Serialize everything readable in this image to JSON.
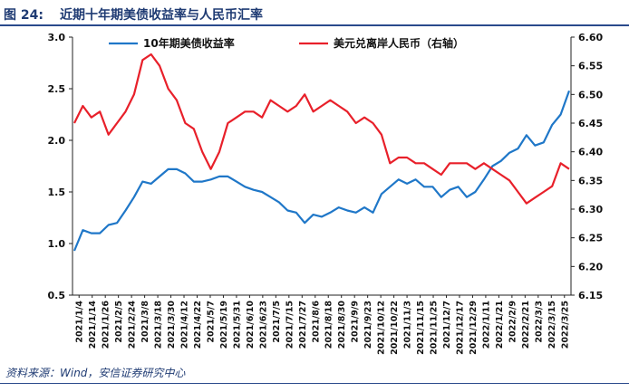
{
  "figure": {
    "label": "图 24:",
    "title": "近期十年期美债收益率与人民币汇率",
    "source": "资料来源：Wind，安信证券研究中心"
  },
  "colors": {
    "bond": "#1f77c8",
    "fx": "#e8202a",
    "axis": "#222222"
  },
  "chart_data": {
    "type": "line",
    "legend_placement": "top",
    "grid": false,
    "y_left": {
      "ylim": [
        0.5,
        3.0
      ],
      "ticks": [
        "0.5",
        "1.0",
        "1.5",
        "2.0",
        "2.5",
        "3.0"
      ]
    },
    "y_right": {
      "ylim": [
        6.15,
        6.6
      ],
      "ticks": [
        "6.15",
        "6.20",
        "6.25",
        "6.30",
        "6.35",
        "6.40",
        "6.45",
        "6.50",
        "6.55",
        "6.60"
      ]
    },
    "x_tick_labels": [
      "2021/1/4",
      "2021/1/14",
      "2021/1/26",
      "2021/2/5",
      "2021/2/24",
      "2021/3/8",
      "2021/3/18",
      "2021/3/30",
      "2021/4/12",
      "2021/4/22",
      "2021/5/7",
      "2021/5/19",
      "2021/5/31",
      "2021/6/10",
      "2021/6/23",
      "2021/7/5",
      "2021/7/15",
      "2021/7/27",
      "2021/8/6",
      "2021/8/18",
      "2021/8/30",
      "2021/9/9",
      "2021/9/23",
      "2021/10/12",
      "2021/10/22",
      "2021/11/3",
      "2021/11/15",
      "2021/11/25",
      "2021/12/7",
      "2021/12/17",
      "2021/12/29",
      "2022/1/11",
      "2022/1/21",
      "2022/2/9",
      "2022/2/21",
      "2022/3/3",
      "2022/3/15",
      "2022/3/25"
    ],
    "series": [
      {
        "name": "10年期美债收益率",
        "axis": "left",
        "values": [
          0.93,
          1.13,
          1.1,
          1.1,
          1.18,
          1.2,
          1.32,
          1.45,
          1.6,
          1.58,
          1.65,
          1.72,
          1.72,
          1.68,
          1.6,
          1.6,
          1.62,
          1.65,
          1.65,
          1.6,
          1.55,
          1.52,
          1.5,
          1.45,
          1.4,
          1.32,
          1.3,
          1.2,
          1.28,
          1.26,
          1.3,
          1.35,
          1.32,
          1.3,
          1.35,
          1.3,
          1.48,
          1.55,
          1.62,
          1.58,
          1.62,
          1.55,
          1.55,
          1.45,
          1.52,
          1.55,
          1.45,
          1.5,
          1.62,
          1.75,
          1.8,
          1.88,
          1.92,
          2.05,
          1.95,
          1.98,
          2.15,
          2.25,
          2.48
        ]
      },
      {
        "name": "美元兑离岸人民币（右轴）",
        "axis": "right",
        "values": [
          6.45,
          6.48,
          6.46,
          6.47,
          6.43,
          6.45,
          6.47,
          6.5,
          6.56,
          6.57,
          6.55,
          6.51,
          6.49,
          6.45,
          6.44,
          6.4,
          6.37,
          6.4,
          6.45,
          6.46,
          6.47,
          6.47,
          6.46,
          6.49,
          6.48,
          6.47,
          6.48,
          6.5,
          6.47,
          6.48,
          6.49,
          6.48,
          6.47,
          6.45,
          6.46,
          6.45,
          6.43,
          6.38,
          6.39,
          6.39,
          6.38,
          6.38,
          6.37,
          6.36,
          6.38,
          6.38,
          6.38,
          6.37,
          6.38,
          6.37,
          6.36,
          6.35,
          6.33,
          6.31,
          6.32,
          6.33,
          6.34,
          6.38,
          6.37
        ]
      }
    ]
  }
}
